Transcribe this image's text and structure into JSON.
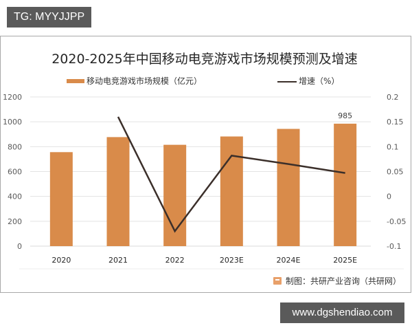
{
  "watermarks": {
    "top_tag": "TG: MYYJJPP",
    "bottom_tag": "www.dgshendiao.com"
  },
  "chart_data": {
    "type": "bar+line",
    "title": "2020-2025年中国移动电竞游戏市场规模预测及增速",
    "categories": [
      "2020",
      "2021",
      "2022",
      "2023E",
      "2024E",
      "2025E"
    ],
    "series": [
      {
        "name": "移动电竞游戏市场规模（亿元）",
        "type": "bar",
        "axis": "left",
        "color": "#D98B4A",
        "values": [
          756,
          877,
          815,
          882,
          943,
          985
        ]
      },
      {
        "name": "增速（%）",
        "type": "line",
        "axis": "right",
        "color": "#3b2f2a",
        "values": [
          null,
          0.16,
          -0.07,
          0.082,
          0.065,
          0.047
        ]
      }
    ],
    "data_labels": [
      {
        "category": "2025E",
        "series": "移动电竞游戏市场规模（亿元）",
        "text": "985"
      }
    ],
    "left_axis": {
      "ylim": [
        0,
        1200
      ],
      "ticks": [
        "0",
        "200",
        "400",
        "600",
        "800",
        "1000",
        "1200"
      ]
    },
    "right_axis": {
      "ylim": [
        -0.1,
        0.2
      ],
      "ticks": [
        "-0.1",
        "-0.05",
        "0",
        "0.05",
        "0.1",
        "0.15",
        "0.2"
      ]
    },
    "xlabel": "",
    "ylabel": "",
    "grid": true,
    "legend_position": "top"
  },
  "legend": {
    "bar_label": "移动电竞游戏市场规模（亿元）",
    "line_label": "增速（%）"
  },
  "source": {
    "text": "制图：共研产业咨询（共研网）"
  }
}
